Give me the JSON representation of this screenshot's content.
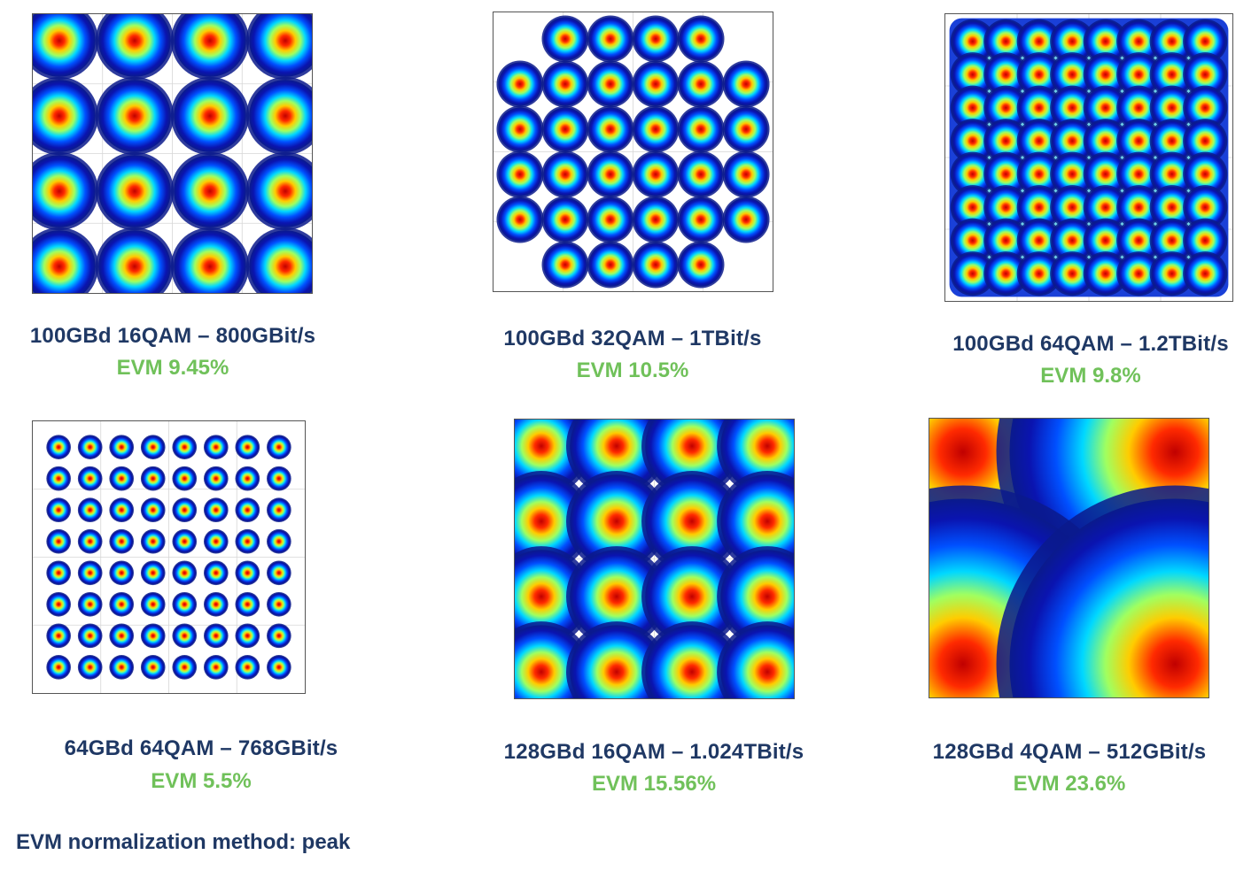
{
  "chart_data": [
    {
      "type": "scatter",
      "title": "100GBd 16QAM – 800GBit/s",
      "evm": "EVM 9.45%",
      "constellation": "16QAM",
      "grid": true,
      "points_per_axis": 4,
      "corners_removed": false,
      "spread": "medium"
    },
    {
      "type": "scatter",
      "title": "100GBd 32QAM – 1TBit/s",
      "evm": "EVM 10.5%",
      "constellation": "32QAM",
      "grid": true,
      "points_per_axis": 6,
      "corners_removed": true,
      "spread": "medium"
    },
    {
      "type": "scatter",
      "title": "100GBd 64QAM – 1.2TBit/s",
      "evm": "EVM 9.8%",
      "constellation": "64QAM",
      "grid": true,
      "points_per_axis": 8,
      "corners_removed": false,
      "spread": "high"
    },
    {
      "type": "scatter",
      "title": "64GBd 64QAM – 768GBit/s",
      "evm": "EVM 5.5%",
      "constellation": "64QAM",
      "grid": true,
      "points_per_axis": 8,
      "corners_removed": false,
      "spread": "low"
    },
    {
      "type": "scatter",
      "title": "128GBd 16QAM – 1.024TBit/s",
      "evm": "EVM 15.56%",
      "constellation": "16QAM",
      "grid": true,
      "points_per_axis": 4,
      "corners_removed": false,
      "spread": "high"
    },
    {
      "type": "scatter",
      "title": "128GBd 4QAM – 512GBit/s",
      "evm": "EVM 23.6%",
      "constellation": "4QAM",
      "grid": true,
      "points_per_axis": 2,
      "corners_removed": false,
      "spread": "very high"
    }
  ],
  "footer": "EVM normalization method: peak",
  "colors": {
    "title": "#1f3864",
    "evm": "#70c15a",
    "scatter_edge": "#0a1a8c",
    "scatter_core": "#d01010"
  }
}
